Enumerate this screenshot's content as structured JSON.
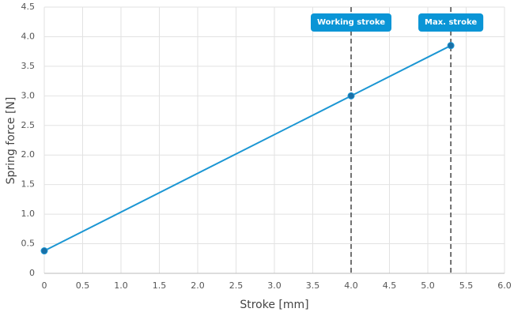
{
  "chart_data": {
    "type": "line",
    "x_label": "Stroke [mm]",
    "y_label": "Spring force [N]",
    "x": [
      0,
      4.0,
      5.3
    ],
    "series": [
      {
        "color": "#1b96d3",
        "values": [
          0.38,
          3.0,
          3.85
        ]
      }
    ],
    "xlim": [
      0,
      6
    ],
    "ylim": [
      0,
      4.5
    ],
    "xticks": [
      0,
      0.5,
      {
        "value": 1,
        "label": "1.0"
      },
      1.5,
      {
        "value": 2,
        "label": "2.0"
      },
      2.5,
      {
        "value": 3,
        "label": "3.0"
      },
      3.5,
      {
        "value": 4,
        "label": "4.0"
      },
      4.5,
      {
        "value": 5,
        "label": "5.0"
      },
      5.5,
      {
        "value": 6,
        "label": "6.0"
      }
    ],
    "yticks": [
      0,
      0.5,
      {
        "value": 1,
        "label": "1.0"
      },
      1.5,
      {
        "value": 2,
        "label": "2.0"
      },
      2.5,
      {
        "value": 3,
        "label": "3.0"
      },
      3.5,
      {
        "value": 4,
        "label": "4.0"
      },
      4.5
    ],
    "grid": true,
    "annotations": [
      {
        "x": 4.0,
        "label": "Working stroke"
      },
      {
        "x": 5.3,
        "label": "Max. stroke"
      }
    ],
    "annotation_color": "#0a95d6"
  }
}
